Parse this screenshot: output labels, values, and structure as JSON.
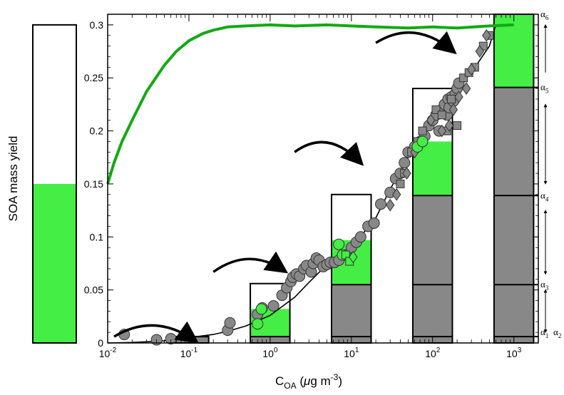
{
  "colors": {
    "green_fill": "#44ee44",
    "green_line": "#11aa11",
    "gray": "#888888",
    "marker_edge": "#333333",
    "axis": "#000000"
  },
  "chart_data": {
    "type": "scatter",
    "title": "",
    "ylabel": "SOA mass yield",
    "xlabel": {
      "main": "C",
      "sub": "OA",
      "paren": " (",
      "mu": "μ",
      "unit": "g m",
      "sup": "-3",
      "close": ")"
    },
    "xscale": "log",
    "xlim": [
      0.01,
      2000
    ],
    "ylim": [
      0,
      0.31
    ],
    "grid": false,
    "yticks": [
      {
        "v": 0,
        "label": "0"
      },
      {
        "v": 0.05,
        "label": "0.05"
      },
      {
        "v": 0.1,
        "label": "0.1"
      },
      {
        "v": 0.15,
        "label": "0.15"
      },
      {
        "v": 0.2,
        "label": "0.2"
      },
      {
        "v": 0.25,
        "label": "0.25"
      },
      {
        "v": 0.3,
        "label": "0.3"
      }
    ],
    "xticks": [
      {
        "v": 0.01,
        "base": "10",
        "exp": "-2"
      },
      {
        "v": 0.1,
        "base": "10",
        "exp": "-1"
      },
      {
        "v": 1,
        "base": "10",
        "exp": "0"
      },
      {
        "v": 10,
        "base": "10",
        "exp": "1"
      },
      {
        "v": 100,
        "base": "10",
        "exp": "2"
      },
      {
        "v": 1000,
        "base": "10",
        "exp": "3"
      }
    ],
    "side_bar": {
      "total": 0.3,
      "filled": 0.15
    },
    "bins": [
      {
        "center": 0.1,
        "top": 0.006,
        "levels": [
          0.006
        ],
        "green": 0
      },
      {
        "center": 1,
        "top": 0.056,
        "levels": [
          0.006
        ],
        "green": 0.032
      },
      {
        "center": 10,
        "top": 0.14,
        "levels": [
          0.006,
          0.055
        ],
        "green": 0.097
      },
      {
        "center": 100,
        "top": 0.24,
        "levels": [
          0.006,
          0.055,
          0.139
        ],
        "green": 0.19
      },
      {
        "center": 1000,
        "top": 0.31,
        "levels": [
          0.006,
          0.055,
          0.139,
          0.241
        ],
        "green": 0.31
      }
    ],
    "alpha_labels": [
      {
        "name": "α",
        "sub": "1",
        "y": 0.006
      },
      {
        "name": "α",
        "sub": "2",
        "y": 0.006
      },
      {
        "name": "α",
        "sub": "3",
        "y": 0.055
      },
      {
        "name": "α",
        "sub": "4",
        "y": 0.139
      },
      {
        "name": "α",
        "sub": "5",
        "y": 0.241
      },
      {
        "name": "α",
        "sub": "6",
        "y": 0.31
      }
    ],
    "series": [
      {
        "marker": "circle",
        "color": "gray",
        "x": [
          0.016,
          0.04,
          0.06,
          0.3,
          0.32,
          0.7,
          0.8,
          1.1,
          1.4,
          1.6,
          1.8,
          1.9,
          2.1,
          2.3,
          2.6,
          2.8,
          3.2,
          3.4,
          3.7,
          4,
          4.5,
          5,
          5.5,
          6.2,
          7,
          8.5,
          10,
          11.5,
          13,
          16,
          19,
          23,
          30,
          35,
          40,
          45,
          50,
          60,
          70,
          80,
          90,
          100,
          110,
          120,
          130,
          140,
          150,
          155,
          160,
          170,
          180,
          190,
          200,
          210
        ],
        "y": [
          0.008,
          0.003,
          0.004,
          0.012,
          0.019,
          0.027,
          0.033,
          0.035,
          0.045,
          0.052,
          0.058,
          0.062,
          0.065,
          0.063,
          0.07,
          0.073,
          0.067,
          0.075,
          0.08,
          0.078,
          0.072,
          0.074,
          0.076,
          0.076,
          0.078,
          0.083,
          0.09,
          0.095,
          0.1,
          0.11,
          0.113,
          0.131,
          0.142,
          0.155,
          0.16,
          0.17,
          0.18,
          0.185,
          0.19,
          0.195,
          0.205,
          0.21,
          0.215,
          0.2,
          0.22,
          0.225,
          0.215,
          0.23,
          0.222,
          0.232,
          0.228,
          0.235,
          0.24,
          0.245
        ]
      },
      {
        "marker": "square",
        "color": "gray",
        "x": [
          40,
          45,
          55,
          65,
          75,
          110,
          130,
          150,
          170,
          200,
          240,
          280,
          330,
          420,
          500
        ],
        "y": [
          0.15,
          0.16,
          0.18,
          0.19,
          0.2,
          0.22,
          0.215,
          0.2,
          0.23,
          0.205,
          0.25,
          0.255,
          0.26,
          0.28,
          0.29
        ],
        "size": 5.5
      },
      {
        "marker": "diamond",
        "color": "gray",
        "x": [
          30,
          36,
          48,
          60,
          95,
          130,
          160,
          180,
          210,
          260,
          300,
          380,
          460
        ],
        "y": [
          0.13,
          0.14,
          0.16,
          0.18,
          0.21,
          0.2,
          0.205,
          0.22,
          0.232,
          0.24,
          0.258,
          0.275,
          0.29
        ]
      },
      {
        "marker": "circle",
        "color": "green_fill",
        "x": [
          0.7,
          0.78,
          7,
          7.8,
          65,
          75
        ],
        "y": [
          0.018,
          0.032,
          0.093,
          0.083,
          0.185,
          0.19
        ]
      },
      {
        "marker": "square",
        "color": "green_fill",
        "x": [
          8.5,
          9.5
        ],
        "y": [
          0.083,
          0.077
        ]
      },
      {
        "marker": "diamond",
        "color": "green_fill",
        "x": [
          10.5
        ],
        "y": [
          0.081
        ]
      }
    ],
    "fit_line": {
      "x": [
        0.01,
        0.02,
        0.05,
        0.1,
        0.2,
        0.3,
        0.5,
        1,
        2,
        3,
        5,
        10,
        20,
        30,
        50,
        100,
        200,
        300,
        500,
        600
      ],
      "y": [
        0.0,
        0.0005,
        0.002,
        0.005,
        0.008,
        0.011,
        0.016,
        0.026,
        0.043,
        0.057,
        0.074,
        0.09,
        0.118,
        0.145,
        0.175,
        0.21,
        0.24,
        0.255,
        0.28,
        0.3
      ]
    },
    "green_curve": {
      "x": [
        0.01,
        0.012,
        0.015,
        0.02,
        0.03,
        0.05,
        0.07,
        0.1,
        0.15,
        0.2,
        0.3,
        0.5,
        1,
        2,
        5,
        10,
        20,
        50,
        100,
        200,
        500,
        1000
      ],
      "y": [
        0.15,
        0.17,
        0.19,
        0.21,
        0.237,
        0.262,
        0.275,
        0.285,
        0.292,
        0.295,
        0.298,
        0.299,
        0.3,
        0.299,
        0.3,
        0.299,
        0.298,
        0.297,
        0.298,
        0.297,
        0.299,
        0.3
      ]
    },
    "curved_arrows": [
      {
        "from": [
          0.012,
          0.006
        ],
        "to": [
          0.12,
          0.002
        ]
      },
      {
        "from": [
          0.2,
          0.067
        ],
        "to": [
          1.5,
          0.068
        ]
      },
      {
        "from": [
          2,
          0.18
        ],
        "to": [
          13,
          0.17
        ]
      },
      {
        "from": [
          20,
          0.283
        ],
        "to": [
          180,
          0.275
        ]
      }
    ]
  }
}
